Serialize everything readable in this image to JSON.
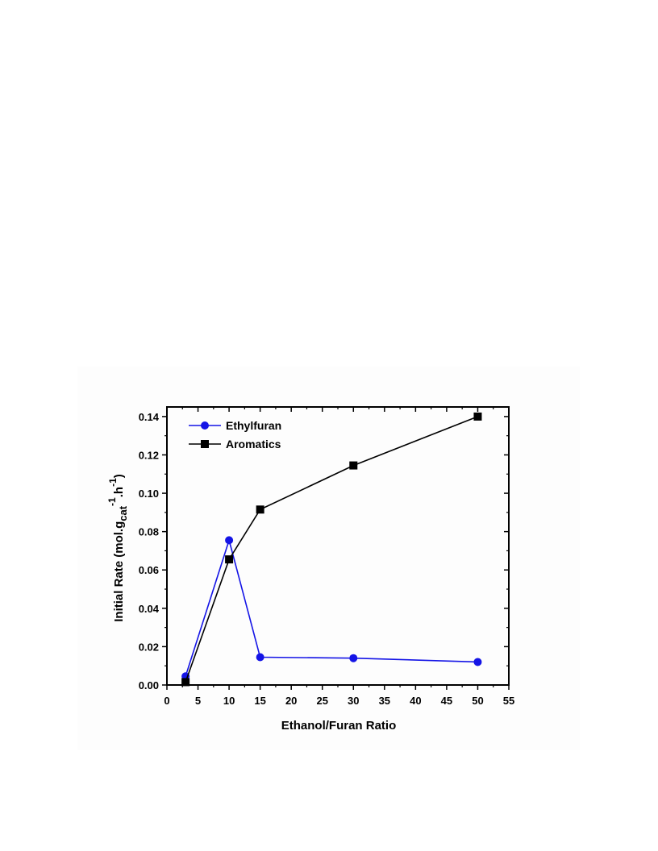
{
  "chart_data": {
    "type": "line",
    "xlabel": "Ethanol/Furan Ratio",
    "ylabel": {
      "main": "Initial Rate (mol.g",
      "sub": "cat",
      "sup1": "-1",
      "mid": ".h",
      "sup2": "-1",
      "end": ")"
    },
    "xlim": [
      0,
      55
    ],
    "ylim": [
      0,
      0.145
    ],
    "xticks": [
      "0",
      "5",
      "10",
      "15",
      "20",
      "25",
      "30",
      "35",
      "40",
      "45",
      "50",
      "55"
    ],
    "yticks": [
      "0.00",
      "0.02",
      "0.04",
      "0.06",
      "0.08",
      "0.10",
      "0.12",
      "0.14"
    ],
    "grid": false,
    "legend_position": "top-left",
    "series": [
      {
        "name": "Ethylfuran",
        "color": "#1414e6",
        "marker": "circle",
        "x": [
          3,
          10,
          15,
          30,
          50
        ],
        "y": [
          0.0045,
          0.0755,
          0.0145,
          0.014,
          0.012
        ]
      },
      {
        "name": "Aromatics",
        "color": "#000000",
        "marker": "square",
        "x": [
          3,
          10,
          15,
          30,
          50
        ],
        "y": [
          0.0015,
          0.0655,
          0.0915,
          0.1145,
          0.14
        ]
      }
    ]
  }
}
